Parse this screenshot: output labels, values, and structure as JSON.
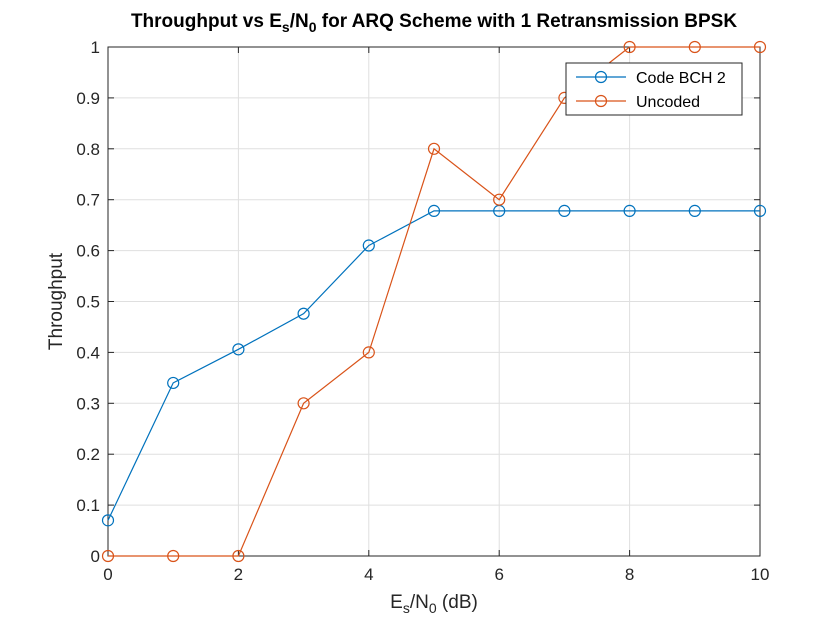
{
  "chart_data": {
    "type": "line",
    "title": {
      "pre": "Throughput vs E",
      "sub1": "s",
      "mid": "/N",
      "sub2": "0",
      "post": " for ARQ Scheme with 1 Retransmission BPSK"
    },
    "xlabel": {
      "pre": "E",
      "sub1": "s",
      "mid": "/N",
      "sub2": "0",
      "post": " (dB)"
    },
    "ylabel": "Throughput",
    "xlim": [
      0,
      10
    ],
    "ylim": [
      0,
      1
    ],
    "xticks": [
      0,
      2,
      4,
      6,
      8,
      10
    ],
    "xtick_labels": [
      "0",
      "2",
      "4",
      "6",
      "8",
      "10"
    ],
    "yticks": [
      0,
      0.1,
      0.2,
      0.3,
      0.4,
      0.5,
      0.6,
      0.7,
      0.8,
      0.9,
      1
    ],
    "ytick_labels": [
      "0",
      "0.1",
      "0.2",
      "0.3",
      "0.4",
      "0.5",
      "0.6",
      "0.7",
      "0.8",
      "0.9",
      "1"
    ],
    "grid": true,
    "legend_position": "top-right",
    "x": [
      0,
      1,
      2,
      3,
      4,
      5,
      6,
      7,
      8,
      9,
      10
    ],
    "series": [
      {
        "name": "Code BCH 2",
        "color": "#0072BD",
        "marker": "circle",
        "values": [
          0.07,
          0.34,
          0.406,
          0.476,
          0.61,
          0.678,
          0.678,
          0.678,
          0.678,
          0.678,
          0.678
        ]
      },
      {
        "name": "Uncoded",
        "color": "#D95319",
        "marker": "circle",
        "values": [
          0,
          0,
          0,
          0.3,
          0.4,
          0.8,
          0.7,
          0.9,
          1,
          1,
          1
        ]
      }
    ]
  }
}
